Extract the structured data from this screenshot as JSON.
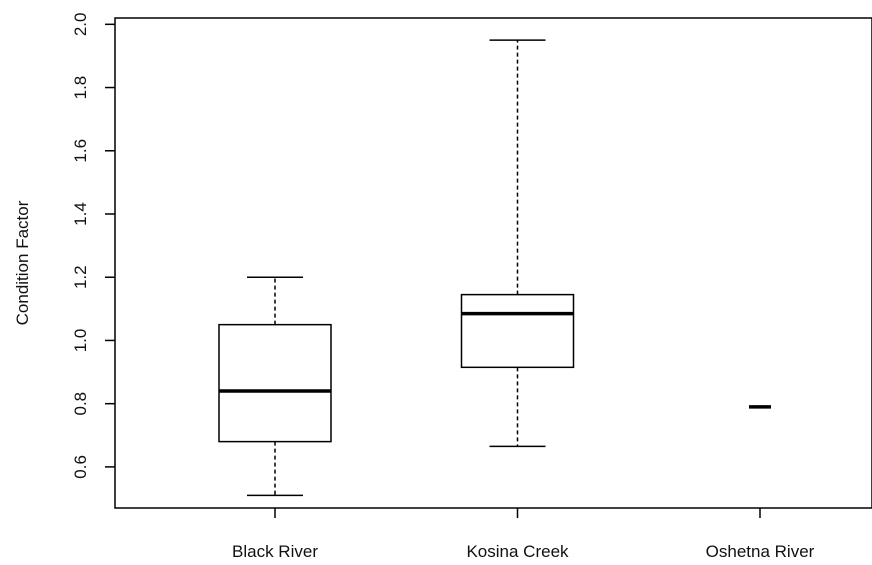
{
  "chart_data": {
    "type": "boxplot",
    "title": "",
    "xlabel": "",
    "ylabel": "Condition Factor",
    "ylim": [
      0.47,
      2.02
    ],
    "yticks": [
      0.6,
      0.8,
      1.0,
      1.2,
      1.4,
      1.6,
      1.8,
      2.0
    ],
    "ytick_labels": [
      "0.6",
      "0.8",
      "1.0",
      "1.2",
      "1.4",
      "1.6",
      "1.8",
      "2.0"
    ],
    "grid": false,
    "categories": [
      "Black River",
      "Kosina Creek",
      "Oshetna River"
    ],
    "boxes": [
      {
        "category": "Black River",
        "whisker_low": 0.51,
        "q1": 0.68,
        "median": 0.84,
        "q3": 1.05,
        "whisker_high": 1.2
      },
      {
        "category": "Kosina Creek",
        "whisker_low": 0.665,
        "q1": 0.915,
        "median": 1.085,
        "q3": 1.145,
        "whisker_high": 1.95
      },
      {
        "category": "Oshetna River",
        "whisker_low": 0.79,
        "q1": 0.79,
        "median": 0.79,
        "q3": 0.79,
        "whisker_high": 0.79
      }
    ]
  }
}
